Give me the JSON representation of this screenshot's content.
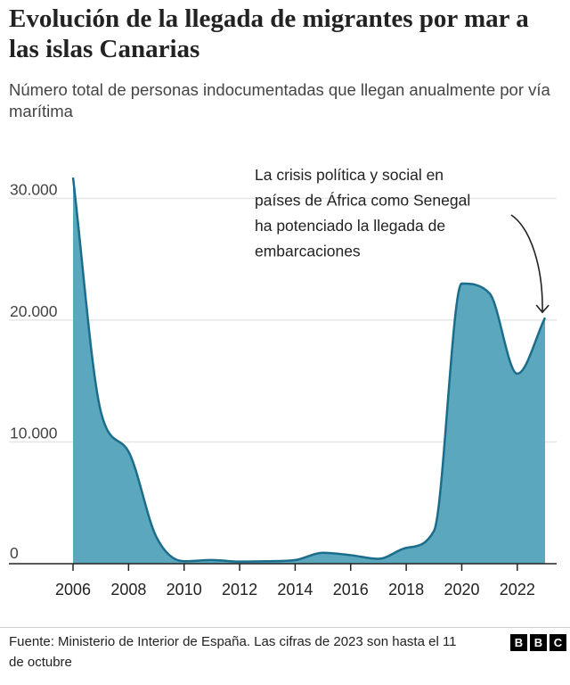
{
  "header": {
    "title": "Evolución de la llegada de migrantes por mar a las islas Canarias",
    "subtitle": "Número total de personas indocumentadas que llegan anualmente por vía marítima"
  },
  "footer": {
    "source": "Fuente: Ministerio de Interior de España. Las cifras de 2023 son hasta el 11 de octubre",
    "logo_letters": [
      "B",
      "B",
      "C"
    ]
  },
  "colors": {
    "area_fill": "#5ba7be",
    "area_line": "#1b6d8b",
    "gridline": "#e6e6e6",
    "axis": "#222222",
    "text": "#222222"
  },
  "chart_data": {
    "type": "area",
    "title": "Evolución de la llegada de migrantes por mar a las islas Canarias",
    "subtitle": "Número total de personas indocumentadas que llegan anualmente por vía marítima",
    "x": [
      2006,
      2007,
      2008,
      2009,
      2010,
      2011,
      2012,
      2013,
      2014,
      2015,
      2016,
      2017,
      2018,
      2019,
      2020,
      2021,
      2022,
      2023
    ],
    "series": [
      {
        "values": [
          31700,
          12500,
          9200,
          2200,
          200,
          300,
          170,
          200,
          300,
          900,
          700,
          400,
          1300,
          2700,
          23000,
          22200,
          15600,
          20200
        ]
      }
    ],
    "xticks": [
      2006,
      2008,
      2010,
      2012,
      2014,
      2016,
      2018,
      2020,
      2022
    ],
    "xtick_labels": [
      "2006",
      "2008",
      "2010",
      "2012",
      "2014",
      "2016",
      "2018",
      "2020",
      "2022"
    ],
    "yticks": [
      0,
      10000,
      20000,
      30000
    ],
    "ytick_labels": [
      "0",
      "10.000",
      "20.000",
      "30.000"
    ],
    "ylim": [
      0,
      32000
    ],
    "xlim": [
      2006,
      2023
    ],
    "xlabel": "",
    "ylabel": "",
    "grid": true,
    "annotation": {
      "lines": [
        "La crisis política y social en",
        "países de África como Senegal",
        "ha potenciado la llegada de",
        "embarcaciones"
      ],
      "target": {
        "x": 2023,
        "y": 20200
      }
    }
  }
}
